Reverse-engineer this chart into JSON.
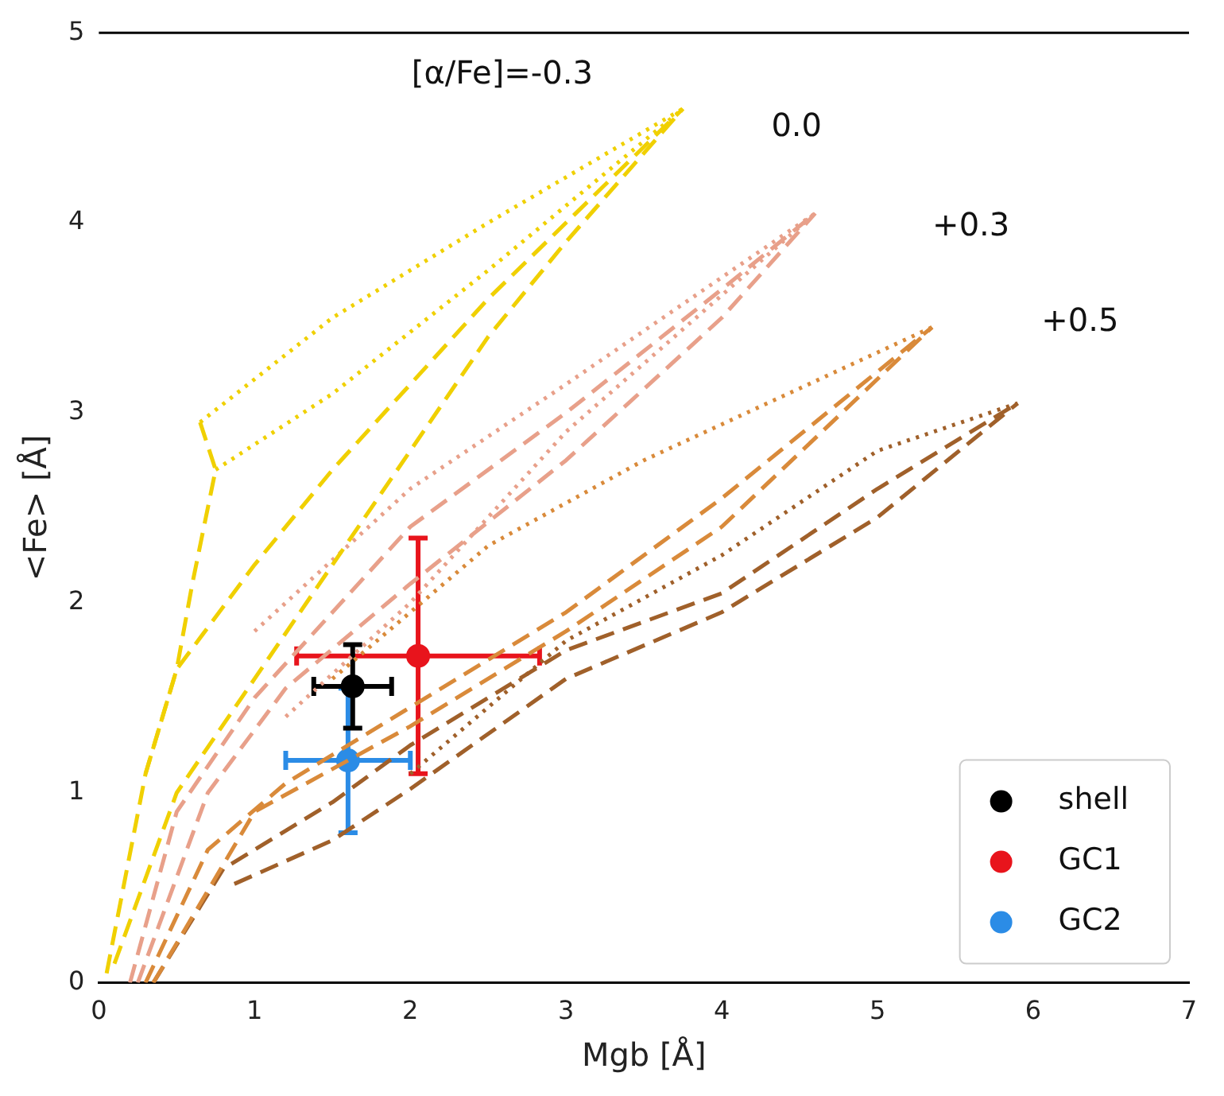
{
  "chart_data": {
    "type": "line",
    "xlabel": "Mgb [Å]",
    "ylabel": "<Fe> [Å]",
    "xlim": [
      0,
      7
    ],
    "ylim": [
      0,
      5
    ],
    "xticks": [
      0,
      1,
      2,
      3,
      4,
      5,
      6,
      7
    ],
    "yticks": [
      0,
      1,
      2,
      3,
      4,
      5
    ],
    "grid": false,
    "legend": "bottom right",
    "series": [
      {
        "line_style": "dashed",
        "color": "#f0d000",
        "x": [
          0.05,
          0.3,
          0.5,
          1.0,
          1.5,
          2.0,
          2.5,
          3.0,
          3.75
        ],
        "values": [
          0.05,
          1.1,
          1.65,
          2.2,
          2.7,
          3.15,
          3.6,
          4.0,
          4.6
        ]
      },
      {
        "line_style": "dashed",
        "color": "#f0d000",
        "x": [
          0.1,
          0.5,
          1.0,
          1.5,
          2.0,
          2.5,
          3.0,
          3.75
        ],
        "values": [
          0.1,
          1.0,
          1.6,
          2.2,
          2.8,
          3.4,
          3.9,
          4.6
        ]
      },
      {
        "line_style": "dashed",
        "color": "#f0d000",
        "x": [
          0.65,
          0.75,
          0.6,
          0.5,
          0.3
        ],
        "values": [
          2.95,
          2.7,
          2.1,
          1.65,
          1.1
        ]
      },
      {
        "line_style": "dotted",
        "color": "#f0d000",
        "x": [
          0.65,
          1.5,
          2.5,
          3.75
        ],
        "values": [
          2.95,
          3.5,
          4.0,
          4.6
        ]
      },
      {
        "line_style": "dotted",
        "color": "#f0d000",
        "x": [
          0.75,
          1.5,
          2.5,
          3.75
        ],
        "values": [
          2.7,
          3.1,
          3.75,
          4.6
        ]
      },
      {
        "line_style": "dashed",
        "color": "#e8a08a",
        "x": [
          0.2,
          0.5,
          1.0,
          1.5,
          2.0,
          3.0,
          4.0,
          4.6
        ],
        "values": [
          0.0,
          0.9,
          1.5,
          1.95,
          2.4,
          3.0,
          3.65,
          4.05
        ]
      },
      {
        "line_style": "dashed",
        "color": "#e8a08a",
        "x": [
          0.25,
          0.7,
          1.2,
          2.0,
          3.0,
          4.0,
          4.6
        ],
        "values": [
          0.0,
          1.0,
          1.55,
          2.1,
          2.75,
          3.5,
          4.05
        ]
      },
      {
        "line_style": "dotted",
        "color": "#e8a08a",
        "x": [
          1.0,
          2.0,
          3.0,
          4.6
        ],
        "values": [
          1.85,
          2.6,
          3.15,
          4.05
        ]
      },
      {
        "line_style": "dotted",
        "color": "#e8a08a",
        "x": [
          1.2,
          2.0,
          3.0,
          4.6
        ],
        "values": [
          1.4,
          2.0,
          2.9,
          4.05
        ]
      },
      {
        "line_style": "dashed",
        "color": "#d98a3a",
        "x": [
          0.3,
          0.7,
          1.2,
          2.0,
          3.0,
          4.0,
          5.35
        ],
        "values": [
          0.0,
          0.7,
          1.05,
          1.45,
          1.95,
          2.55,
          3.45
        ]
      },
      {
        "line_style": "dashed",
        "color": "#d98a3a",
        "x": [
          0.35,
          1.0,
          2.0,
          3.0,
          4.0,
          5.35
        ],
        "values": [
          0.0,
          0.9,
          1.35,
          1.85,
          2.4,
          3.45
        ]
      },
      {
        "line_style": "dotted",
        "color": "#d98a3a",
        "x": [
          1.5,
          2.5,
          3.5,
          5.35
        ],
        "values": [
          1.6,
          2.3,
          2.75,
          3.45
        ]
      },
      {
        "line_style": "dashed",
        "color": "#a0602a",
        "x": [
          0.35,
          0.8,
          1.5,
          2.0,
          3.0,
          4.0,
          5.0,
          5.9
        ],
        "values": [
          0.0,
          0.6,
          0.95,
          1.25,
          1.75,
          2.05,
          2.6,
          3.05
        ]
      },
      {
        "line_style": "dashed",
        "color": "#a0602a",
        "x": [
          0.87,
          1.5,
          2.0,
          3.0,
          4.0,
          5.0,
          5.9
        ],
        "values": [
          0.52,
          0.75,
          1.02,
          1.6,
          1.95,
          2.45,
          3.05
        ]
      },
      {
        "line_style": "dotted",
        "color": "#a0602a",
        "x": [
          2.0,
          3.0,
          4.0,
          5.0,
          5.9
        ],
        "values": [
          1.1,
          1.8,
          2.25,
          2.8,
          3.05
        ]
      },
      {
        "type": "scatter",
        "marker": "circle",
        "name": "shell",
        "color": "#000000",
        "x": [
          1.63
        ],
        "values": [
          1.56
        ],
        "errors": [
          0.22
        ],
        "xerrors": [
          0.25
        ]
      },
      {
        "type": "scatter",
        "marker": "circle",
        "name": "GC1",
        "color": "#e8141c",
        "x": [
          2.05
        ],
        "values": [
          1.72
        ],
        "errors": [
          0.62
        ],
        "xerrors": [
          0.78
        ]
      },
      {
        "type": "scatter",
        "marker": "circle",
        "name": "GC2",
        "color": "#2b8ce6",
        "x": [
          1.6
        ],
        "values": [
          1.17
        ],
        "errors": [
          0.38
        ],
        "xerrors": [
          0.4
        ]
      }
    ],
    "annotations": [
      "[α/Fe]=-0.3",
      "0.0",
      "+0.3",
      "+0.5"
    ]
  }
}
